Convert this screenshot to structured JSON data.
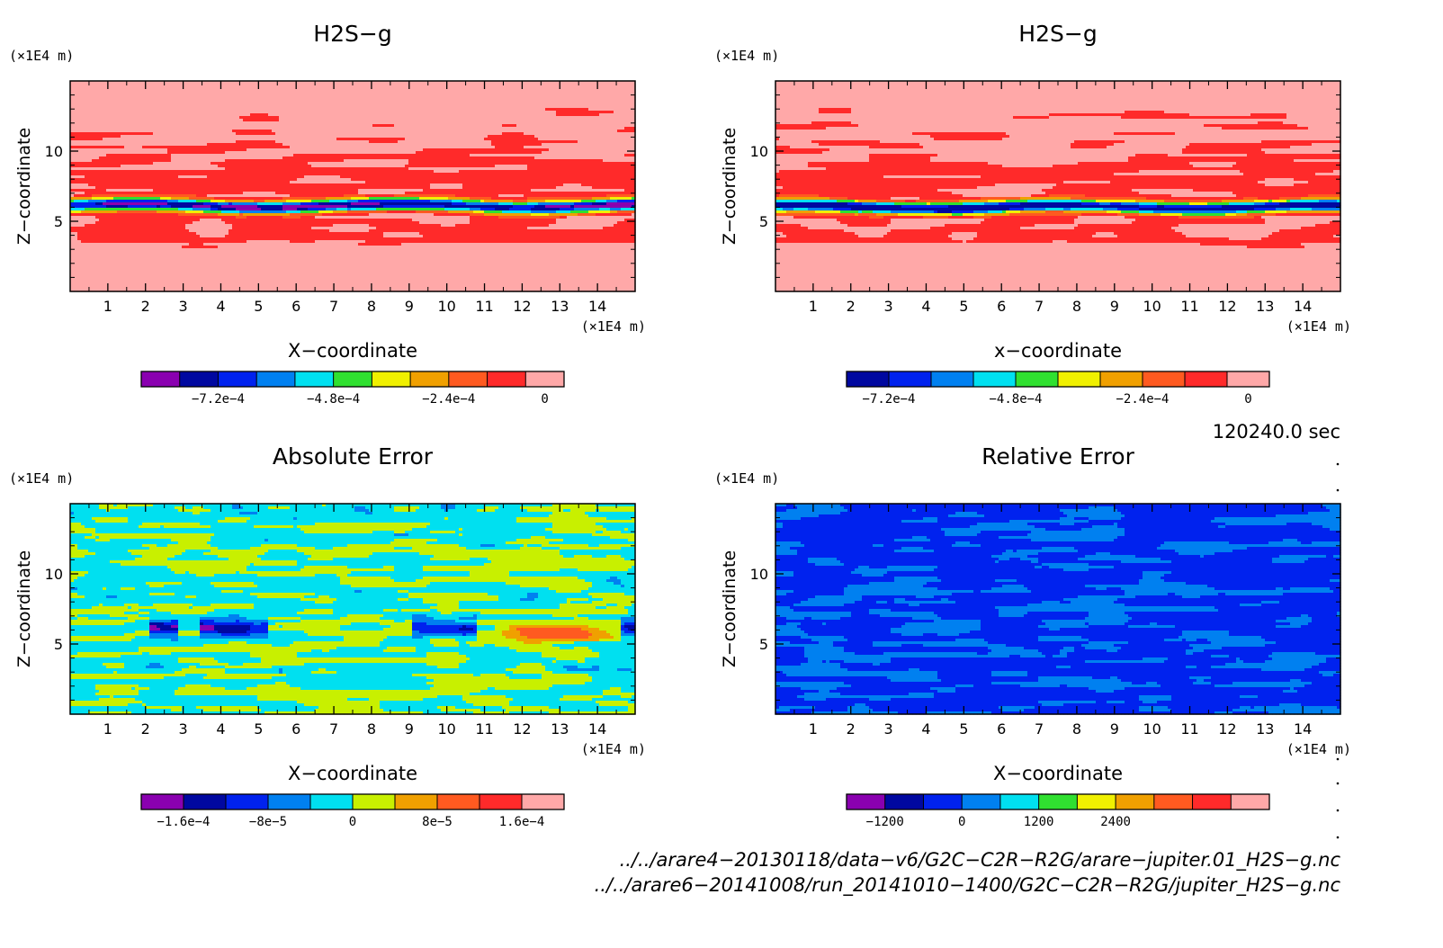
{
  "chart_data": [
    {
      "type": "heatmap",
      "title": "H2S−g",
      "xlabel": "X−coordinate",
      "ylabel": "Z−coordinate",
      "x_unit": "(×1E4 m)",
      "y_unit": "(×1E4 m)",
      "xlim": [
        0,
        15
      ],
      "ylim": [
        0,
        15
      ],
      "x_ticks": [
        1,
        2,
        3,
        4,
        5,
        6,
        7,
        8,
        9,
        10,
        11,
        12,
        13,
        14
      ],
      "y_ticks": [
        5,
        10
      ],
      "colorbar": {
        "colors": [
          "#8a00b0",
          "#0008a0",
          "#0022ee",
          "#0080f0",
          "#00e0f0",
          "#30e030",
          "#f0f000",
          "#f0a000",
          "#ff5a20",
          "#ff2a2a",
          "#ffa8a8"
        ],
        "levels": [
          -0.00088,
          -0.0008,
          -0.00072,
          -0.00064,
          -0.00056,
          -0.00048,
          -0.0004,
          -0.00032,
          -0.00024,
          -0.00016,
          -8e-05,
          0
        ],
        "tick_labels": [
          {
            "value": -0.00072,
            "label": "−7.2e−4"
          },
          {
            "value": -0.00048,
            "label": "−4.8e−4"
          },
          {
            "value": -0.00024,
            "label": "−2.4e−4"
          },
          {
            "value": 0,
            "label": "0"
          }
        ]
      },
      "field": "background_pink_with_red_bands_and_minimum_near_z_6",
      "band_z_center": 6.1,
      "band_min_value": -0.0008
    },
    {
      "type": "heatmap",
      "title": "H2S−g",
      "xlabel": "x−coordinate",
      "ylabel": "Z−coordinate",
      "x_unit": "(×1E4 m)",
      "y_unit": "(×1E4 m)",
      "xlim": [
        0,
        15
      ],
      "ylim": [
        0,
        15
      ],
      "x_ticks": [
        1,
        2,
        3,
        4,
        5,
        6,
        7,
        8,
        9,
        10,
        11,
        12,
        13,
        14
      ],
      "y_ticks": [
        5,
        10
      ],
      "colorbar": {
        "colors": [
          "#0008a0",
          "#0022ee",
          "#0080f0",
          "#00e0f0",
          "#30e030",
          "#f0f000",
          "#f0a000",
          "#ff5a20",
          "#ff2a2a",
          "#ffa8a8"
        ],
        "levels": [
          -0.0008,
          -0.00072,
          -0.00064,
          -0.00056,
          -0.00048,
          -0.0004,
          -0.00032,
          -0.00024,
          -0.00016,
          -8e-05,
          0
        ],
        "tick_labels": [
          {
            "value": -0.00072,
            "label": "−7.2e−4"
          },
          {
            "value": -0.00048,
            "label": "−4.8e−4"
          },
          {
            "value": -0.00024,
            "label": "−2.4e−4"
          },
          {
            "value": 0,
            "label": "0"
          }
        ]
      },
      "field": "background_pink_with_red_bands_and_minimum_near_z_6",
      "band_z_center": 6.0,
      "band_min_value": -0.00076
    },
    {
      "type": "heatmap",
      "title": "Absolute Error",
      "xlabel": "X−coordinate",
      "ylabel": "Z−coordinate",
      "x_unit": "(×1E4 m)",
      "y_unit": "(×1E4 m)",
      "xlim": [
        0,
        15
      ],
      "ylim": [
        0,
        15
      ],
      "x_ticks": [
        1,
        2,
        3,
        4,
        5,
        6,
        7,
        8,
        9,
        10,
        11,
        12,
        13,
        14
      ],
      "y_ticks": [
        5,
        10
      ],
      "colorbar": {
        "colors": [
          "#8a00b0",
          "#0008a0",
          "#0022ee",
          "#0080f0",
          "#00e0f0",
          "#c8f000",
          "#f0a000",
          "#ff5a20",
          "#ff2a2a",
          "#ffa8a8"
        ],
        "levels": [
          -0.0002,
          -0.00016,
          -0.00012,
          -8e-05,
          -4e-05,
          0,
          4e-05,
          8e-05,
          0.00012,
          0.00016,
          0.0002
        ],
        "tick_labels": [
          {
            "value": -0.00016,
            "label": "−1.6e−4"
          },
          {
            "value": -8e-05,
            "label": "−8e−5"
          },
          {
            "value": 0,
            "label": "0"
          },
          {
            "value": 8e-05,
            "label": "8e−5"
          },
          {
            "value": 0.00016,
            "label": "1.6e−4"
          }
        ]
      },
      "field": "cyan_and_yellowgreen_patches_with_blue_and_red_features_near_z_6"
    },
    {
      "type": "heatmap",
      "title": "Relative Error",
      "xlabel": "X−coordinate",
      "ylabel": "Z−coordinate",
      "x_unit": "(×1E4 m)",
      "y_unit": "(×1E4 m)",
      "xlim": [
        0,
        15
      ],
      "ylim": [
        0,
        15
      ],
      "x_ticks": [
        1,
        2,
        3,
        4,
        5,
        6,
        7,
        8,
        9,
        10,
        11,
        12,
        13,
        14
      ],
      "y_ticks": [
        5,
        10
      ],
      "colorbar": {
        "colors": [
          "#8a00b0",
          "#0008a0",
          "#0022ee",
          "#0080f0",
          "#00e0f0",
          "#30e030",
          "#f0f000",
          "#f0a000",
          "#ff5a20",
          "#ff2a2a",
          "#ffa8a8"
        ],
        "levels": [
          -1800,
          -1200,
          -600,
          0,
          600,
          1200,
          1800,
          2400,
          3000,
          3600,
          4200,
          4800
        ],
        "tick_labels": [
          {
            "value": -1200,
            "label": "−1200"
          },
          {
            "value": 0,
            "label": "0"
          },
          {
            "value": 1200,
            "label": "1200"
          },
          {
            "value": 2400,
            "label": "2400"
          }
        ]
      },
      "field": "mostly_azure_with_cyan_patches"
    }
  ],
  "footer": {
    "time": "120240.0 sec",
    "file1": "../../arare4−20130118/data−v6/G2C−C2R−R2G/arare−jupiter.01_H2S−g.nc",
    "file2": "../../arare6−20141008/run_20141010−1400/G2C−C2R−R2G/jupiter_H2S−g.nc"
  }
}
